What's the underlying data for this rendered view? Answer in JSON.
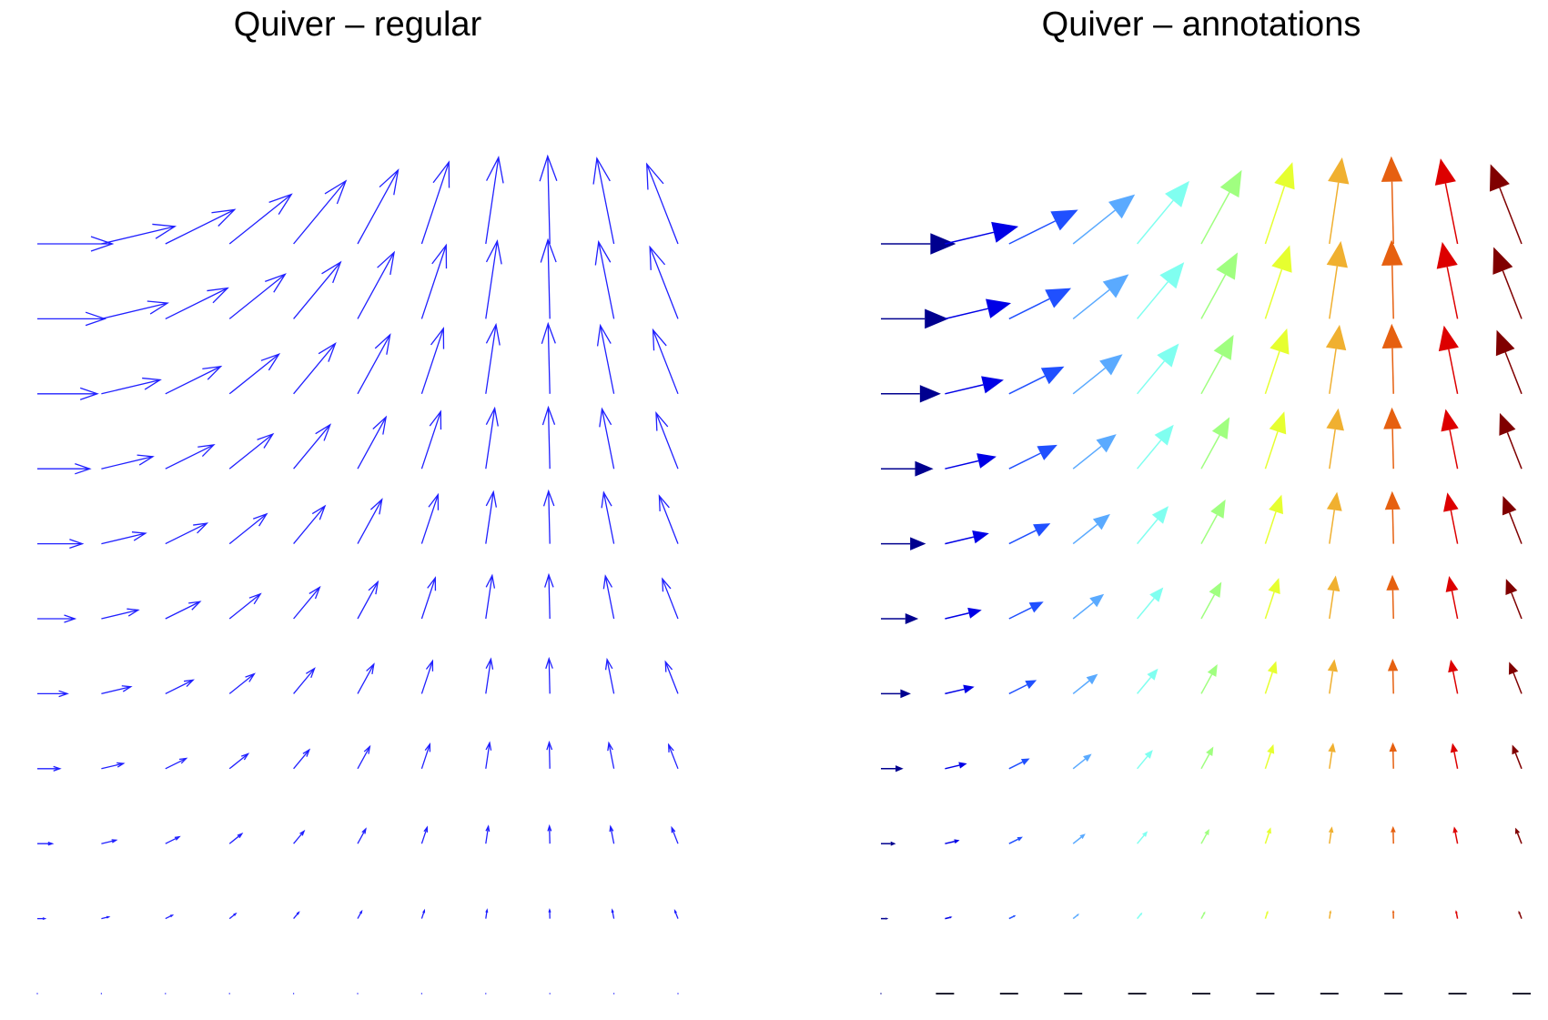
{
  "chart_data": [
    {
      "type": "quiver",
      "title": "Quiver – regular",
      "x": [
        0,
        0.2,
        0.4,
        0.6,
        0.8,
        1.0,
        1.2,
        1.4,
        1.6,
        1.8,
        2.0
      ],
      "y": [
        0,
        0.2,
        0.4,
        0.6,
        0.8,
        1.0,
        1.2,
        1.4,
        1.6,
        1.8,
        2.0
      ],
      "arrow_color": "#2020ff",
      "head_style": "open",
      "axes_visible": false
    },
    {
      "type": "quiver",
      "title": "Quiver – annotations",
      "x": [
        0,
        0.2,
        0.4,
        0.6,
        0.8,
        1.0,
        1.2,
        1.4,
        1.6,
        1.8,
        2.0
      ],
      "y": [
        0,
        0.2,
        0.4,
        0.6,
        0.8,
        1.0,
        1.2,
        1.4,
        1.6,
        1.8,
        2.0
      ],
      "column_colors": [
        "#00008f",
        "#0000e6",
        "#2050ff",
        "#5aaaff",
        "#80fff0",
        "#a0ff80",
        "#e6ff30",
        "#f0b030",
        "#e66010",
        "#dd0000",
        "#800000"
      ],
      "head_style": "filled",
      "axes_visible": false
    }
  ],
  "u": [
    [
      0,
      0,
      0,
      0,
      0,
      0,
      0,
      0,
      0,
      0,
      0
    ],
    [
      0.2,
      0.196,
      0.184,
      0.165,
      0.139,
      0.108,
      0.072,
      0.034,
      -0.006,
      -0.045,
      -0.083
    ],
    [
      0.4,
      0.392,
      0.368,
      0.33,
      0.279,
      0.216,
      0.145,
      0.068,
      -0.012,
      -0.091,
      -0.166
    ],
    [
      0.6,
      0.588,
      0.553,
      0.495,
      0.418,
      0.324,
      0.217,
      0.102,
      -0.017,
      -0.136,
      -0.25
    ],
    [
      0.8,
      0.784,
      0.737,
      0.66,
      0.557,
      0.432,
      0.29,
      0.136,
      -0.023,
      -0.182,
      -0.333
    ],
    [
      1.0,
      0.98,
      0.921,
      0.825,
      0.697,
      0.54,
      0.362,
      0.17,
      -0.029,
      -0.227,
      -0.416
    ],
    [
      1.2,
      1.176,
      1.105,
      0.99,
      0.836,
      0.648,
      0.435,
      0.204,
      -0.035,
      -0.272,
      -0.499
    ],
    [
      1.4,
      1.372,
      1.289,
      1.155,
      0.975,
      0.756,
      0.507,
      0.238,
      -0.041,
      -0.318,
      -0.583
    ],
    [
      1.6,
      1.568,
      1.474,
      1.32,
      1.114,
      0.865,
      0.58,
      0.272,
      -0.047,
      -0.363,
      -0.666
    ],
    [
      1.8,
      1.764,
      1.658,
      1.485,
      1.254,
      0.973,
      0.652,
      0.306,
      -0.052,
      -0.409,
      -0.749
    ],
    [
      2.0,
      1.96,
      1.842,
      1.651,
      1.393,
      1.081,
      0.725,
      0.34,
      -0.058,
      -0.454,
      -0.832
    ]
  ],
  "v": [
    [
      0,
      0,
      0,
      0,
      0,
      0,
      0,
      0,
      0,
      0,
      0
    ],
    [
      0,
      0.04,
      0.078,
      0.113,
      0.143,
      0.168,
      0.186,
      0.197,
      0.2,
      0.195,
      0.182
    ],
    [
      0,
      0.079,
      0.156,
      0.226,
      0.287,
      0.337,
      0.373,
      0.394,
      0.4,
      0.39,
      0.364
    ],
    [
      0,
      0.119,
      0.234,
      0.339,
      0.43,
      0.505,
      0.559,
      0.591,
      0.6,
      0.584,
      0.546
    ],
    [
      0,
      0.159,
      0.312,
      0.452,
      0.574,
      0.673,
      0.746,
      0.788,
      0.8,
      0.779,
      0.727
    ],
    [
      0,
      0.199,
      0.389,
      0.565,
      0.717,
      0.841,
      0.932,
      0.985,
      1.0,
      0.974,
      0.909
    ],
    [
      0,
      0.238,
      0.467,
      0.678,
      0.86,
      1.01,
      1.119,
      1.182,
      1.2,
      1.169,
      1.091
    ],
    [
      0,
      0.278,
      0.545,
      0.791,
      1.004,
      1.178,
      1.305,
      1.379,
      1.399,
      1.364,
      1.273
    ],
    [
      0,
      0.318,
      0.623,
      0.904,
      1.147,
      1.346,
      1.491,
      1.576,
      1.599,
      1.558,
      1.455
    ],
    [
      0,
      0.358,
      0.701,
      1.017,
      1.291,
      1.515,
      1.678,
      1.773,
      1.799,
      1.753,
      1.637
    ],
    [
      0,
      0.397,
      0.779,
      1.129,
      1.434,
      1.683,
      1.864,
      1.97,
      1.999,
      1.948,
      1.819
    ]
  ]
}
